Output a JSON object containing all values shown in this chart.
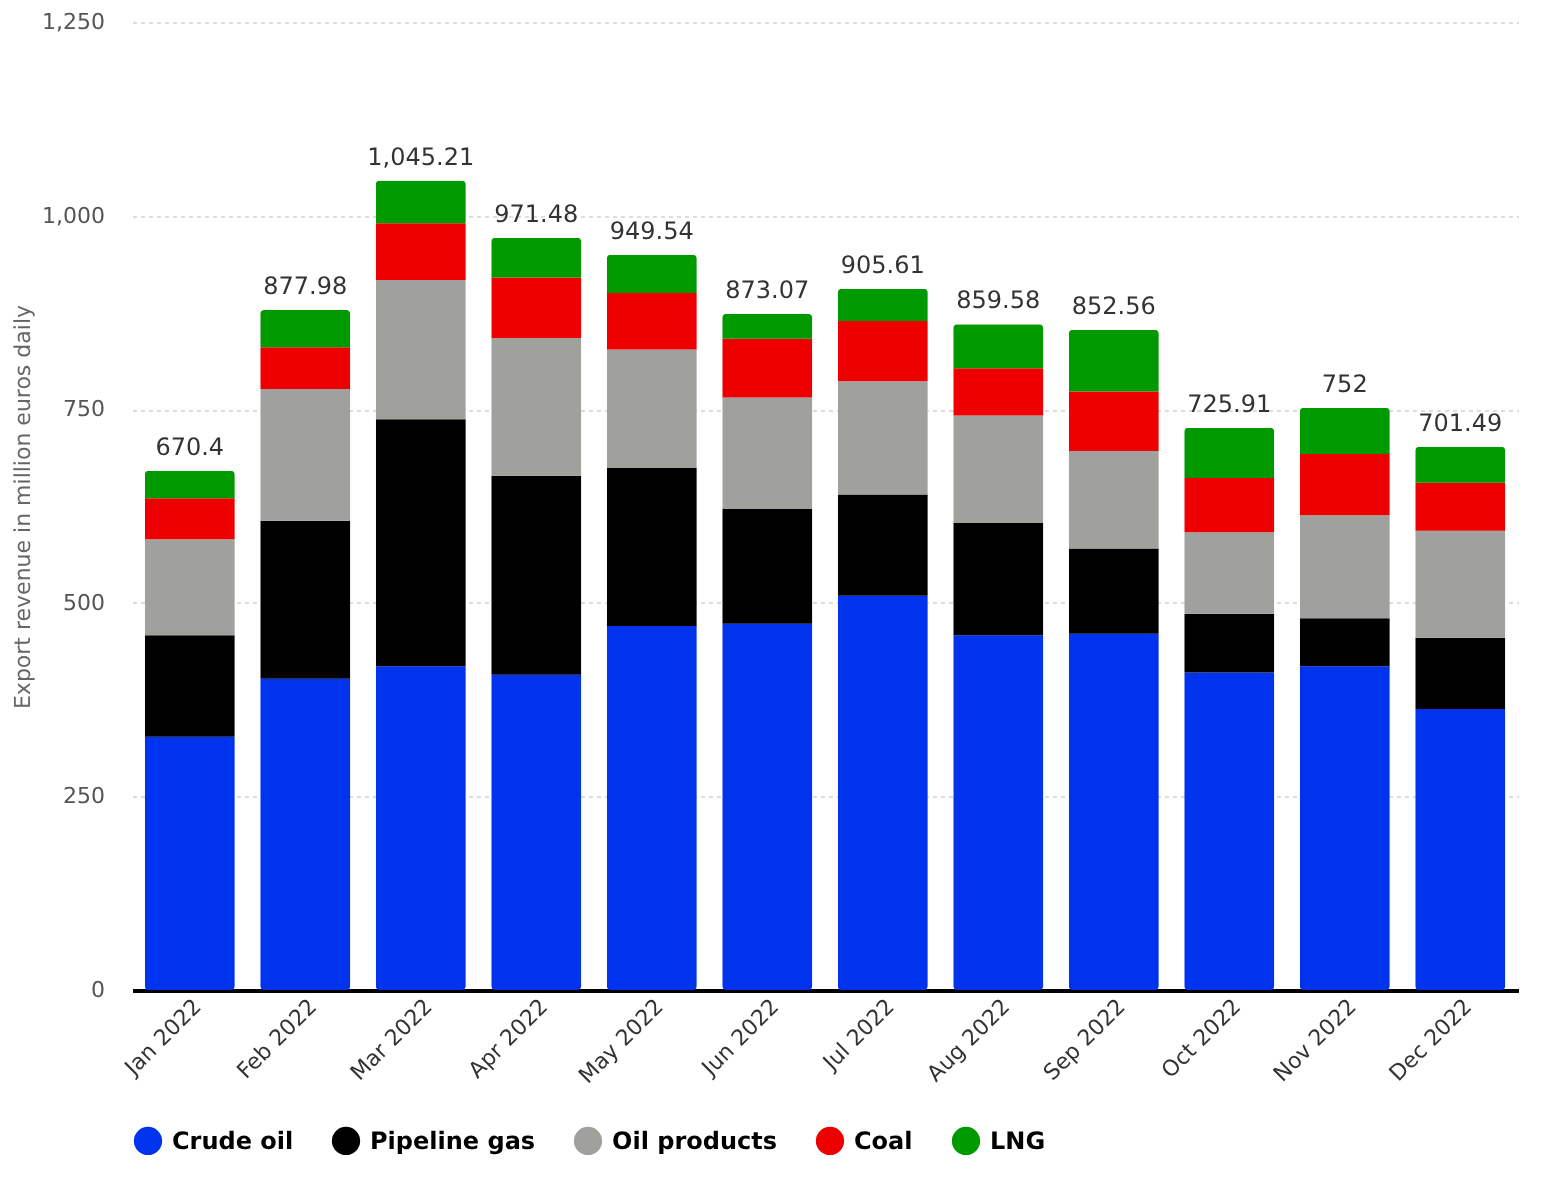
{
  "chart_data": {
    "type": "bar",
    "stacked": true,
    "ylabel": "Export revenue in million euros daily",
    "categories": [
      "Jan 2022",
      "Feb 2022",
      "Mar 2022",
      "Apr 2022",
      "May 2022",
      "Jun 2022",
      "Jul 2022",
      "Aug 2022",
      "Sep 2022",
      "Oct 2022",
      "Nov 2022",
      "Dec 2022"
    ],
    "series": [
      {
        "name": "Crude oil",
        "color": "#0033ee",
        "values": [
          327,
          402,
          418,
          407,
          470,
          473,
          509,
          458,
          460,
          410,
          418,
          363
        ]
      },
      {
        "name": "Pipeline gas",
        "color": "#000000",
        "values": [
          131,
          204,
          319,
          257,
          204,
          148,
          131,
          145,
          110,
          76,
          62,
          92
        ]
      },
      {
        "name": "Oil products",
        "color": "#a0a09c",
        "values": [
          124,
          170,
          180,
          178,
          153,
          144,
          146,
          139,
          126,
          105,
          133,
          138
        ]
      },
      {
        "name": "Coal",
        "color": "#ee0000",
        "values": [
          53,
          54,
          73,
          78,
          73,
          76,
          78,
          61,
          77,
          70,
          79,
          62
        ]
      },
      {
        "name": "LNG",
        "color": "#009900",
        "values": [
          35.4,
          47.98,
          55.21,
          51.48,
          49.54,
          32.07,
          41.61,
          56.58,
          79.56,
          64.91,
          60,
          46.49
        ]
      }
    ],
    "totals": [
      "670.4",
      "877.98",
      "1,045.21",
      "971.48",
      "949.54",
      "873.07",
      "905.61",
      "859.58",
      "852.56",
      "725.91",
      "752",
      "701.49"
    ],
    "ylim": [
      0,
      1250
    ],
    "yticks": [
      0,
      250,
      500,
      750,
      {
        "value": 1000,
        "label": "1,000"
      },
      {
        "value": 1250,
        "label": "1,250"
      }
    ],
    "grid": "y",
    "legend": "bottom"
  }
}
